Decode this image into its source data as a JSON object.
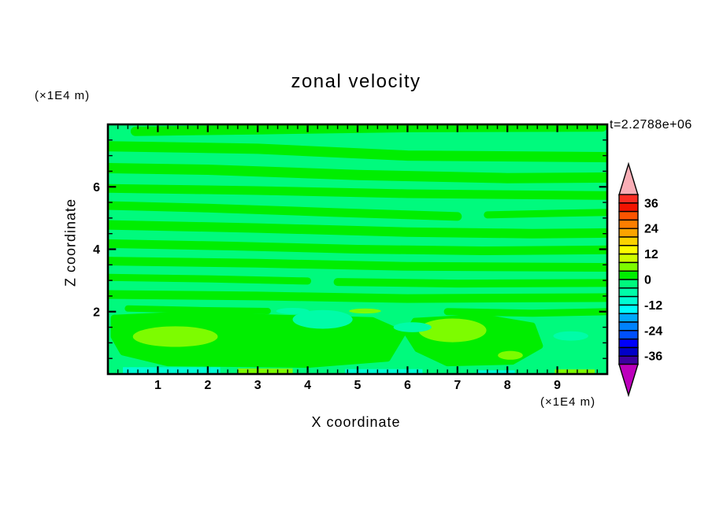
{
  "chart_data": {
    "type": "heatmap",
    "subtype": "filled-contour",
    "title": "zonal velocity",
    "time_annotation": "t=2.2788e+06",
    "xlabel": "X coordinate",
    "x_unit": "(×1E4 m)",
    "ylabel": "Z coordinate",
    "y_unit": "(×1E4 m)",
    "xlim": [
      0,
      10
    ],
    "ylim": [
      0,
      8
    ],
    "x_ticks": [
      "1",
      "2",
      "3",
      "4",
      "5",
      "6",
      "7",
      "8",
      "9"
    ],
    "x_minor_step": 0.2,
    "z_ticks": [
      "2",
      "4",
      "6"
    ],
    "z_minor_step": 0.5,
    "colorbar": {
      "labels": [
        "36",
        "24",
        "12",
        "0",
        "-12",
        "-24",
        "-36"
      ],
      "level_max": 40,
      "level_min": -40,
      "level_step": 4,
      "colors": [
        "#FC2D23",
        "#F21300",
        "#FC5400",
        "#FC7E00",
        "#FCA400",
        "#FCD200",
        "#FCFC00",
        "#CEFC00",
        "#7DFC00",
        "#00EE00",
        "#00FA7D",
        "#00FCA8",
        "#00FCD2",
        "#00FCFC",
        "#00A8FC",
        "#0082FC",
        "#0050FC",
        "#0000FC",
        "#0000C8",
        "#3C00A0"
      ],
      "over_color": "#F9AEB6",
      "under_color": "#BC00BC"
    },
    "background_color": "#00FA7D",
    "background_value_range": [
      -4,
      0
    ],
    "features": {
      "comment": "Approximate filled-contour regions read from the figure; coordinates in data units (x: 0-10, z: 0-8). Bands/areas of value 0..4 are green #00EE00, 4..8 chartreuse #7DFC00, -8..-4 aqua #00FCA8, -12..-8 cyan #00FCD2 on a -4..0 springgreen background.",
      "bands": [
        {
          "w": 12,
          "color": "#00EE00",
          "pts": [
            [
              0.55,
              7.78
            ],
            [
              3,
              7.83
            ],
            [
              6,
              7.9
            ],
            [
              9.9,
              7.92
            ]
          ]
        },
        {
          "w": 13,
          "color": "#00EE00",
          "pts": [
            [
              0,
              7.3
            ],
            [
              3,
              7.22
            ],
            [
              6,
              7.0
            ],
            [
              10,
              6.95
            ]
          ]
        },
        {
          "w": 13,
          "color": "#00EE00",
          "pts": [
            [
              0,
              6.6
            ],
            [
              2,
              6.55
            ],
            [
              5,
              6.38
            ],
            [
              8,
              6.28
            ],
            [
              10,
              6.3
            ]
          ]
        },
        {
          "w": 11,
          "color": "#00EE00",
          "pts": [
            [
              0,
              5.95
            ],
            [
              3,
              5.88
            ],
            [
              6,
              5.78
            ],
            [
              10,
              5.72
            ]
          ]
        },
        {
          "w": 11,
          "color": "#00EE00",
          "pts": [
            [
              0,
              5.4
            ],
            [
              2,
              5.32
            ],
            [
              4.5,
              5.18
            ],
            [
              7,
              5.05
            ]
          ]
        },
        {
          "w": 9,
          "color": "#00EE00",
          "pts": [
            [
              7.6,
              5.1
            ],
            [
              9,
              5.15
            ],
            [
              10,
              5.18
            ]
          ]
        },
        {
          "w": 12,
          "color": "#00EE00",
          "pts": [
            [
              0,
              4.78
            ],
            [
              3,
              4.68
            ],
            [
              6,
              4.55
            ],
            [
              8.5,
              4.5
            ],
            [
              10,
              4.52
            ]
          ]
        },
        {
          "w": 11,
          "color": "#00EE00",
          "pts": [
            [
              0,
              4.18
            ],
            [
              2.5,
              4.1
            ],
            [
              5,
              4.0
            ],
            [
              7.5,
              3.95
            ],
            [
              10,
              3.98
            ]
          ]
        },
        {
          "w": 11,
          "color": "#00EE00",
          "pts": [
            [
              0,
              3.62
            ],
            [
              3,
              3.55
            ],
            [
              6,
              3.45
            ],
            [
              10,
              3.42
            ]
          ]
        },
        {
          "w": 9,
          "color": "#00EE00",
          "pts": [
            [
              0,
              3.1
            ],
            [
              2,
              3.05
            ],
            [
              4,
              2.98
            ]
          ]
        },
        {
          "w": 10,
          "color": "#00EE00",
          "pts": [
            [
              4.6,
              2.95
            ],
            [
              7,
              2.9
            ],
            [
              10,
              2.92
            ]
          ]
        },
        {
          "w": 11,
          "color": "#00EE00",
          "pts": [
            [
              0,
              2.55
            ],
            [
              3,
              2.5
            ],
            [
              6,
              2.42
            ],
            [
              10,
              2.45
            ]
          ]
        },
        {
          "w": 8,
          "color": "#00EE00",
          "pts": [
            [
              0.4,
              2.1
            ],
            [
              1.8,
              2.05
            ],
            [
              3.2,
              2.02
            ]
          ]
        },
        {
          "w": 9,
          "color": "#00EE00",
          "pts": [
            [
              6.8,
              2.0
            ],
            [
              8.5,
              1.95
            ],
            [
              10,
              2.0
            ]
          ]
        }
      ],
      "areas": [
        {
          "color": "#00EE00",
          "pts": [
            [
              0.12,
              1.8
            ],
            [
              1.5,
              1.9
            ],
            [
              3.5,
              1.8
            ],
            [
              5.3,
              1.72
            ],
            [
              5.9,
              1.3
            ],
            [
              5.6,
              0.5
            ],
            [
              4.0,
              0.3
            ],
            [
              1.2,
              0.35
            ],
            [
              0.3,
              0.7
            ],
            [
              0.12,
              1.2
            ]
          ]
        },
        {
          "color": "#00EE00",
          "pts": [
            [
              6.15,
              1.7
            ],
            [
              7.5,
              1.82
            ],
            [
              8.5,
              1.55
            ],
            [
              8.65,
              0.9
            ],
            [
              8.1,
              0.4
            ],
            [
              6.8,
              0.35
            ],
            [
              6.2,
              0.8
            ],
            [
              6.0,
              1.3
            ]
          ]
        }
      ],
      "ellipses": [
        {
          "color": "#7DFC00",
          "cx": 1.35,
          "cy": 1.2,
          "rx": 0.85,
          "ry": 0.33
        },
        {
          "color": "#7DFC00",
          "cx": 6.9,
          "cy": 1.4,
          "rx": 0.68,
          "ry": 0.38
        },
        {
          "color": "#7DFC00",
          "cx": 8.06,
          "cy": 0.6,
          "rx": 0.25,
          "ry": 0.14
        },
        {
          "color": "#7DFC00",
          "cx": 5.15,
          "cy": 2.02,
          "rx": 0.32,
          "ry": 0.08
        },
        {
          "color": "#00FCA8",
          "cx": 4.3,
          "cy": 1.75,
          "rx": 0.6,
          "ry": 0.3
        },
        {
          "color": "#00FCA8",
          "cx": 3.7,
          "cy": 2.02,
          "rx": 0.33,
          "ry": 0.1
        },
        {
          "color": "#00FCA8",
          "cx": 6.1,
          "cy": 1.5,
          "rx": 0.38,
          "ry": 0.16
        },
        {
          "color": "#00FCA8",
          "cx": 9.27,
          "cy": 1.22,
          "rx": 0.35,
          "ry": 0.15
        }
      ],
      "strips": [
        {
          "color": "#00FCD2",
          "x0": 0.3,
          "x1": 2.25,
          "z0": 0,
          "z1": 0.22
        },
        {
          "color": "#00FCD2",
          "x0": 4.75,
          "x1": 6.3,
          "z0": 0,
          "z1": 0.16
        },
        {
          "color": "#00FCD2",
          "x0": 7.4,
          "x1": 8.15,
          "z0": 0,
          "z1": 0.12
        },
        {
          "color": "#7DFC00",
          "x0": 2.6,
          "x1": 3.7,
          "z0": 0,
          "z1": 0.18
        },
        {
          "color": "#7DFC00",
          "x0": 8.95,
          "x1": 9.75,
          "z0": 0,
          "z1": 0.15
        }
      ]
    }
  }
}
